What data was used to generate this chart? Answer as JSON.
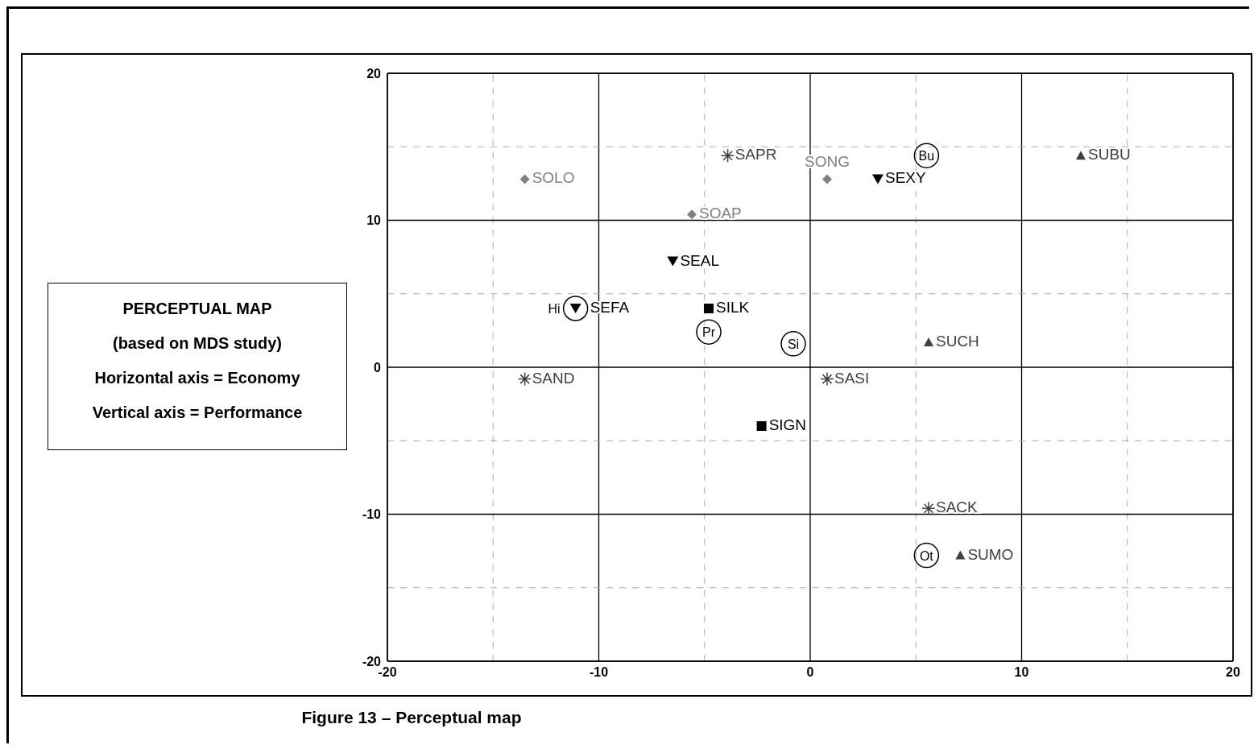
{
  "chart_data": {
    "type": "scatter",
    "title": "Figure 13 – Perceptual map",
    "annotations": [
      "PERCEPTUAL MAP",
      "(based on MDS study)",
      "Horizontal axis = Economy",
      "Vertical axis = Performance"
    ],
    "xlim": [
      -20,
      20
    ],
    "ylim": [
      -20,
      20
    ],
    "xticks": [
      -20,
      {
        "value": -15,
        "label": null
      },
      -10,
      {
        "value": -5,
        "label": null
      },
      0,
      {
        "value": 5,
        "label": null
      },
      10,
      {
        "value": 15,
        "label": null
      },
      20
    ],
    "yticks": [
      -20,
      {
        "value": -15,
        "label": null
      },
      -10,
      {
        "value": -5,
        "label": null
      },
      0,
      {
        "value": 5,
        "label": null
      },
      10,
      {
        "value": 15,
        "label": null
      },
      20
    ],
    "grid": true,
    "legend": false,
    "series": [
      {
        "marker": "diamond",
        "color": "#808080",
        "x": [
          -13.5,
          -5.6,
          0.8
        ],
        "values": [
          12.8,
          10.4,
          12.8
        ],
        "value_labels": [
          "SOLO",
          "SOAP",
          "SONG"
        ]
      },
      {
        "marker": "cross",
        "color": "#404040",
        "x": [
          -3.9,
          -13.5,
          0.8,
          5.6
        ],
        "values": [
          14.4,
          -0.8,
          -0.8,
          -9.6
        ],
        "value_labels": [
          "SAPR",
          "SAND",
          "SASI",
          "SACK"
        ]
      },
      {
        "marker": "triangle-down",
        "color": "#000000",
        "x": [
          -6.5,
          3.2,
          -11.1
        ],
        "values": [
          7.2,
          12.8,
          4.0
        ],
        "value_labels": [
          "SEAL",
          "SEXY",
          "SEFA"
        ]
      },
      {
        "marker": "square",
        "color": "#000000",
        "x": [
          -4.8,
          -2.3
        ],
        "values": [
          4.0,
          -4.0
        ],
        "value_labels": [
          "SILK",
          "SIGN"
        ]
      },
      {
        "marker": "triangle",
        "color": "#404040",
        "x": [
          12.8,
          5.6,
          7.1
        ],
        "values": [
          14.4,
          1.7,
          -12.8
        ],
        "value_labels": [
          "SUBU",
          "SUCH",
          "SUMO"
        ]
      },
      {
        "marker": "circle",
        "color": "#000000",
        "x": [
          5.5,
          -11.1,
          -4.8,
          -0.8,
          5.5
        ],
        "values": [
          14.4,
          4.0,
          2.4,
          1.6,
          -12.8
        ],
        "value_labels": [
          "Bu",
          "Hi",
          "Pr",
          "Si",
          "Ot"
        ]
      }
    ]
  }
}
